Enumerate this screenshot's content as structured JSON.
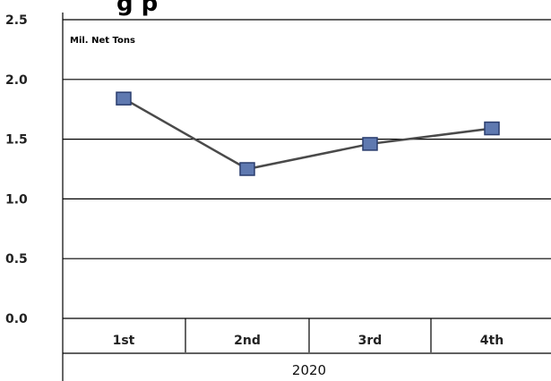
{
  "chart_data": {
    "type": "line",
    "title_partial": "g  p",
    "unit_label": "Mil. Net Tons",
    "categories": [
      "1st",
      "2nd",
      "3rd",
      "4th"
    ],
    "category_group": "2020",
    "values": [
      1.84,
      1.25,
      1.46,
      1.59
    ],
    "y_ticks": [
      "2.5",
      "2.0",
      "1.5",
      "1.0",
      "0.5",
      "0.0"
    ],
    "ylim": [
      0,
      2.5
    ],
    "grid": true,
    "colors": {
      "line": "#4a4a4a",
      "marker_fill": "#5f79b0",
      "marker_stroke": "#2a3d6e",
      "grid": "#000000"
    }
  }
}
